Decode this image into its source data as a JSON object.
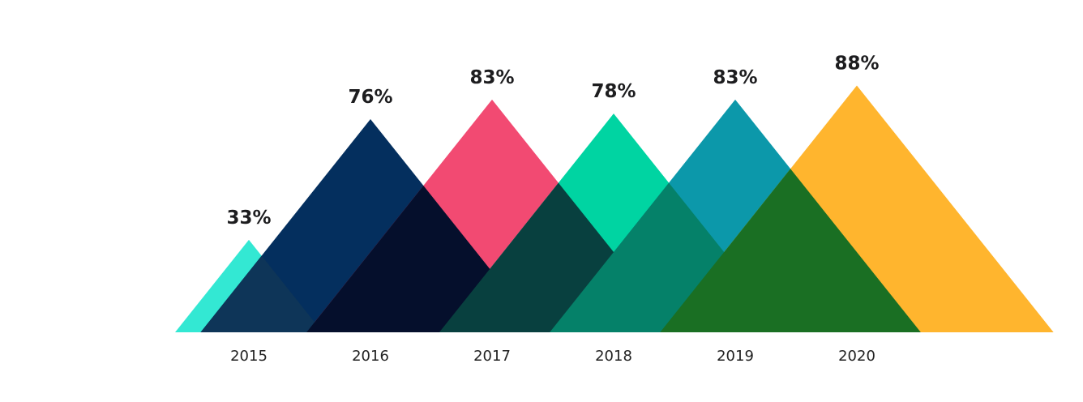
{
  "chart_data": {
    "type": "bar",
    "title": "",
    "xlabel": "",
    "ylabel": "",
    "ylim": [
      0,
      100
    ],
    "grid": false,
    "categories": [
      "2015",
      "2016",
      "2017",
      "2018",
      "2019",
      "2020"
    ],
    "values": [
      33,
      76,
      83,
      78,
      83,
      88
    ],
    "value_labels": [
      "33%",
      "76%",
      "83%",
      "78%",
      "83%",
      "88%"
    ],
    "colors": [
      "#33e8d3",
      "#042f5e",
      "#f24a72",
      "#00d4a2",
      "#0c98aa",
      "#ffb52e"
    ],
    "overlap_colors": [
      "#0e3558",
      "#050f2c",
      "#08403f",
      "#058169",
      "#1a6f23"
    ]
  }
}
